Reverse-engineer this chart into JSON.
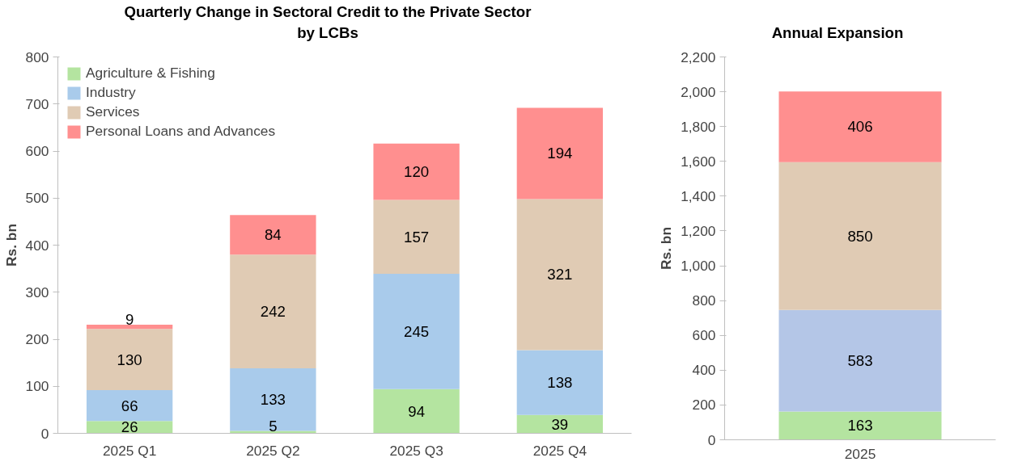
{
  "chart_data": [
    {
      "type": "bar",
      "title": "Quarterly Change in Sectoral Credit to the Private Sector\nby LCBs",
      "ylabel": "Rs. bn",
      "categories": [
        "2025 Q1",
        "2025 Q2",
        "2025 Q3",
        "2025 Q4"
      ],
      "stacked": true,
      "data_labels": true,
      "legend": "top left",
      "grid": false,
      "ylim": [
        0,
        800
      ],
      "yticks": [
        0,
        100,
        200,
        300,
        400,
        500,
        600,
        700,
        800
      ],
      "series": [
        {
          "name": "Agriculture & Fishing",
          "color": "#b4e4a0",
          "values": [
            26,
            5,
            94,
            39
          ]
        },
        {
          "name": "Industry",
          "color": "#a9cbeb",
          "values": [
            66,
            133,
            245,
            138
          ]
        },
        {
          "name": "Services",
          "color": "#e0cbb4",
          "values": [
            130,
            242,
            157,
            321
          ]
        },
        {
          "name": "Personal Loans and Advances",
          "color": "#ff8f8f",
          "values": [
            9,
            84,
            120,
            194
          ]
        }
      ]
    },
    {
      "type": "bar",
      "title": "Annual Expansion",
      "ylabel": "Rs. bn",
      "categories": [
        "2025"
      ],
      "stacked": true,
      "data_labels": true,
      "legend": false,
      "grid": false,
      "ylim": [
        0,
        2200
      ],
      "yticks": [
        0,
        {
          "value": 200,
          "label": "200"
        },
        {
          "value": 400,
          "label": "400"
        },
        {
          "value": 600,
          "label": "600"
        },
        {
          "value": 800,
          "label": "800"
        },
        {
          "value": 1000,
          "label": "1,000"
        },
        {
          "value": 1200,
          "label": "1,200"
        },
        {
          "value": 1400,
          "label": "1,400"
        },
        {
          "value": 1600,
          "label": "1,600"
        },
        {
          "value": 1800,
          "label": "1,800"
        },
        {
          "value": 2000,
          "label": "2,000"
        },
        {
          "value": 2200,
          "label": "2,200"
        }
      ],
      "series": [
        {
          "color": "#b4e4a0",
          "values": [
            163
          ]
        },
        {
          "color": "#b4c6e7",
          "values": [
            583
          ]
        },
        {
          "color": "#e0cbb4",
          "values": [
            850
          ]
        },
        {
          "color": "#ff8f8f",
          "values": [
            406
          ]
        }
      ]
    }
  ]
}
